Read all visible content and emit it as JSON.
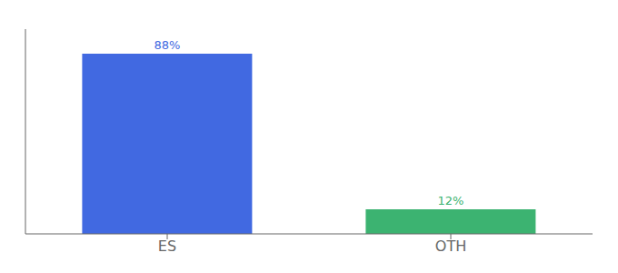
{
  "chart_data": {
    "type": "bar",
    "categories": [
      "ES",
      "OTH"
    ],
    "values": [
      88,
      12
    ],
    "value_labels": [
      "88%",
      "12%"
    ],
    "colors": [
      "#4169E1",
      "#3CB371"
    ],
    "ylim": [
      0,
      100
    ],
    "data_labels": true,
    "tick_labels": "x"
  }
}
